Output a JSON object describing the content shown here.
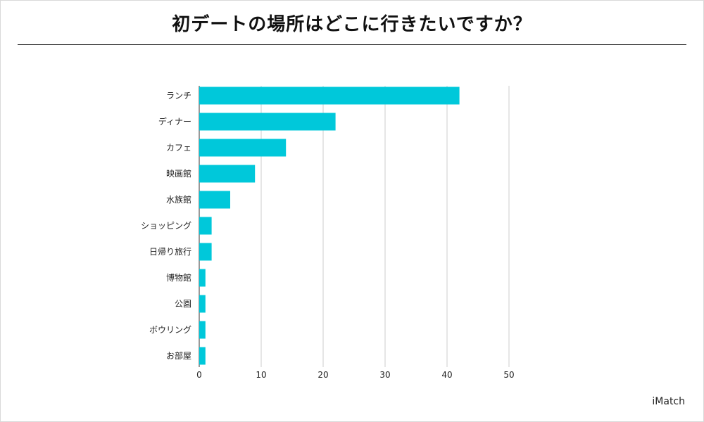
{
  "title": "初デートの場所はどこに行きたいですか？",
  "credit": "iMatch",
  "chart_data": {
    "type": "bar",
    "orientation": "horizontal",
    "title": "初デートの場所はどこに行きたいですか？",
    "xlabel": "",
    "ylabel": "",
    "categories": [
      "ランチ",
      "ディナー",
      "カフェ",
      "映画館",
      "水族館",
      "ショッピング",
      "日帰り旅行",
      "博物館",
      "公園",
      "ボウリング",
      "お部屋"
    ],
    "values": [
      42,
      22,
      14,
      9,
      5,
      2,
      2,
      1,
      1,
      1,
      1
    ],
    "xlim": [
      0,
      50
    ],
    "xticks": [
      0,
      10,
      20,
      30,
      40,
      50
    ],
    "grid": true,
    "bar_color": "#00c8da",
    "grid_color": "#cccccc"
  }
}
